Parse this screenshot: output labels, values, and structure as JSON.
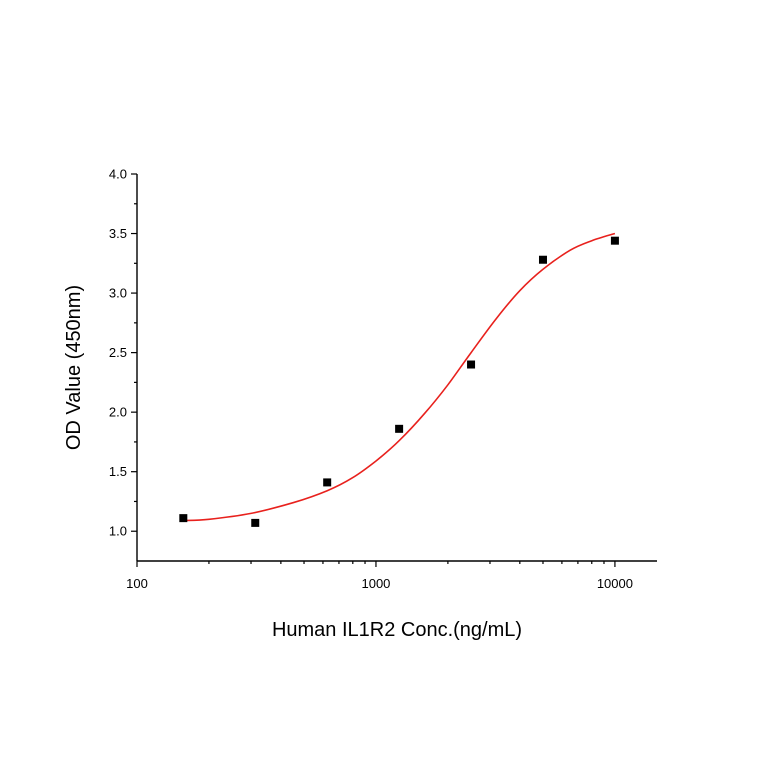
{
  "chart_data": {
    "type": "scatter",
    "title": "",
    "xlabel": "Human IL1R2 Conc.(ng/mL)",
    "ylabel": "OD Value (450nm)",
    "x_scale": "log",
    "xlim": [
      100,
      15000
    ],
    "ylim": [
      0.75,
      4.0
    ],
    "x_ticks": [
      100,
      1000,
      10000
    ],
    "x_tick_labels": [
      "100",
      "1000",
      "10000"
    ],
    "y_ticks": [
      1.0,
      1.5,
      2.0,
      2.5,
      3.0,
      3.5,
      4.0
    ],
    "y_tick_labels": [
      "1.0",
      "1.5",
      "2.0",
      "2.5",
      "3.0",
      "3.5",
      "4.0"
    ],
    "grid": false,
    "legend": "none",
    "series": [
      {
        "kind": "points",
        "marker": "square",
        "color": "#000000",
        "x": [
          156.25,
          312.5,
          625,
          1250,
          2500,
          5000,
          10000
        ],
        "y": [
          1.11,
          1.07,
          1.41,
          1.86,
          2.4,
          3.28,
          3.44
        ]
      },
      {
        "kind": "fit",
        "color": "#e8211d",
        "x": [
          156.25,
          200,
          300,
          450,
          625,
          800,
          1000,
          1250,
          1600,
          2000,
          2500,
          3200,
          4000,
          5000,
          6500,
          8000,
          10000
        ],
        "y": [
          1.09,
          1.1,
          1.15,
          1.24,
          1.34,
          1.45,
          1.59,
          1.76,
          1.99,
          2.23,
          2.5,
          2.79,
          3.02,
          3.2,
          3.36,
          3.44,
          3.5
        ]
      }
    ]
  }
}
